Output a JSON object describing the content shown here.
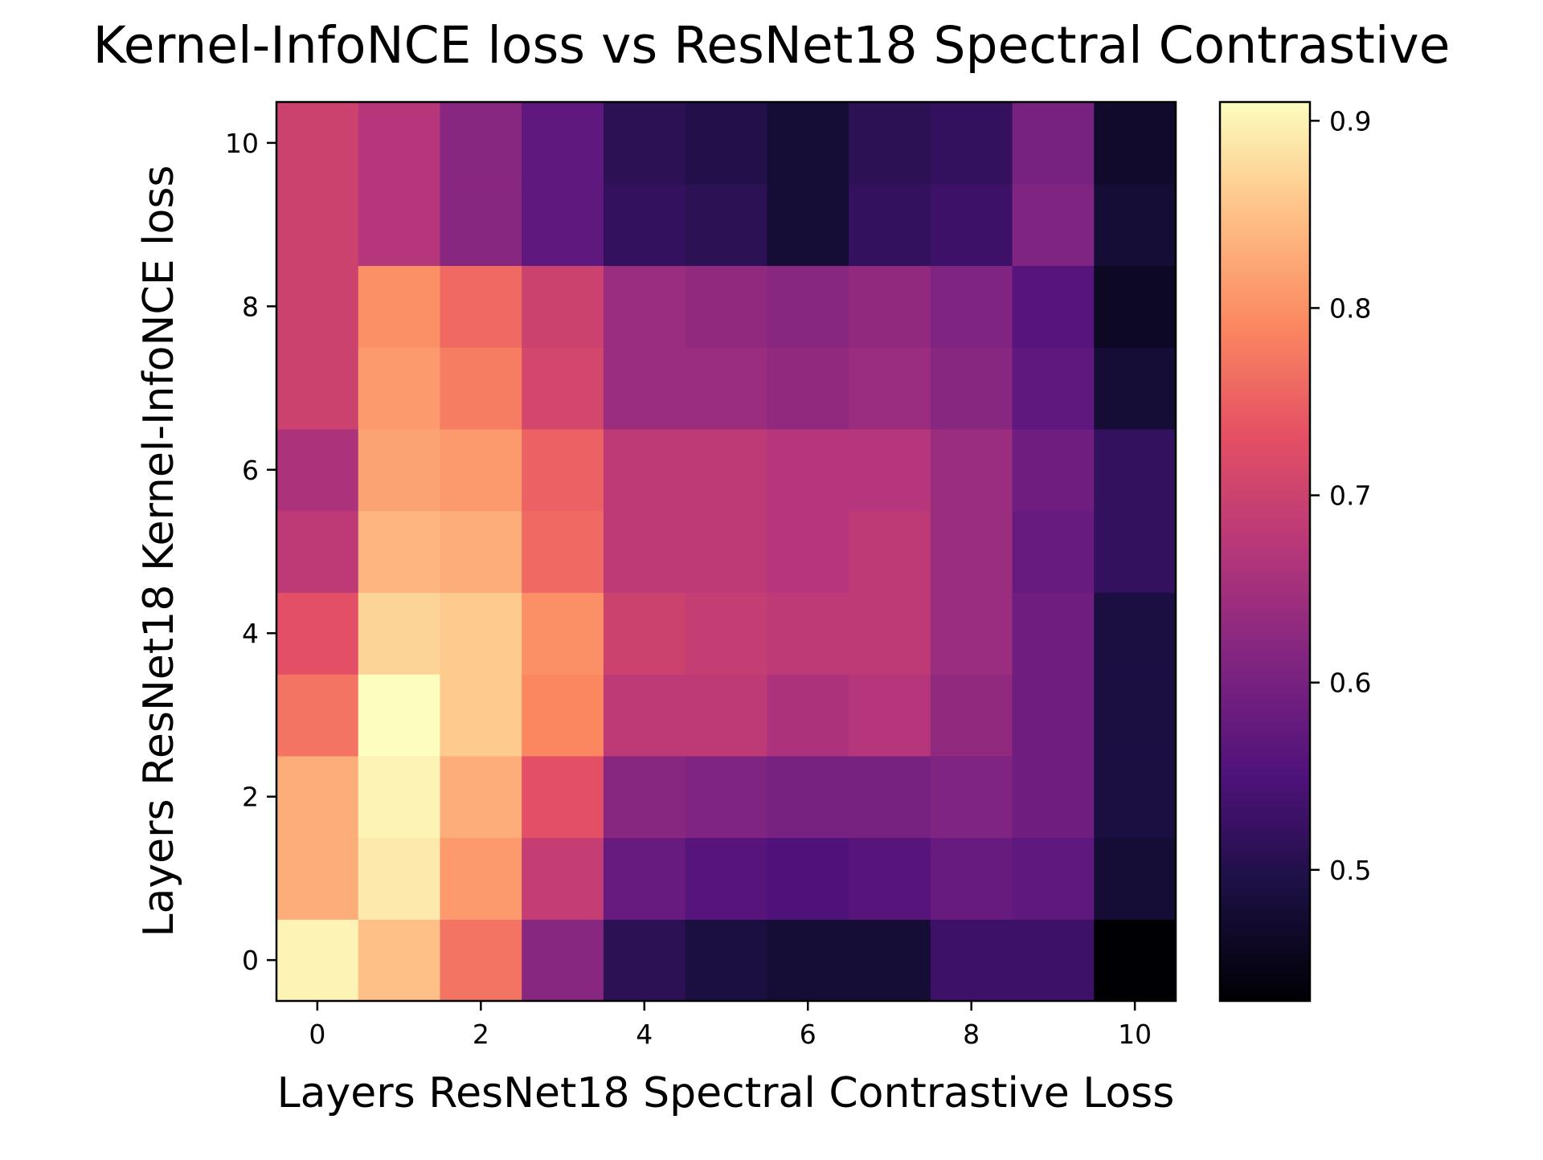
{
  "chart_data": {
    "type": "heatmap",
    "title": "Kernel-InfoNCE loss vs ResNet18 Spectral Contrastive",
    "xlabel": "Layers ResNet18 Spectral Contrastive Loss",
    "ylabel": "Layers ResNet18 Kernel-InfoNCE loss",
    "x": [
      0,
      1,
      2,
      3,
      4,
      5,
      6,
      7,
      8,
      9,
      10
    ],
    "y": [
      0,
      1,
      2,
      3,
      4,
      5,
      6,
      7,
      8,
      9,
      10
    ],
    "x_ticks": [
      0,
      2,
      4,
      6,
      8,
      10
    ],
    "y_ticks": [
      0,
      2,
      4,
      6,
      8,
      10
    ],
    "colormap": "magma",
    "colorbar": {
      "min": 0.43,
      "max": 0.91,
      "ticks": [
        0.5,
        0.6,
        0.7,
        0.8,
        0.9
      ],
      "tick_labels": [
        "0.5",
        "0.6",
        "0.7",
        "0.8",
        "0.9"
      ]
    },
    "rows": [
      {
        "y": 0,
        "values": [
          0.9,
          0.85,
          0.77,
          0.62,
          0.51,
          0.49,
          0.48,
          0.48,
          0.53,
          0.53,
          0.43
        ]
      },
      {
        "y": 1,
        "values": [
          0.83,
          0.89,
          0.81,
          0.69,
          0.58,
          0.56,
          0.55,
          0.56,
          0.58,
          0.57,
          0.48
        ]
      },
      {
        "y": 2,
        "values": [
          0.83,
          0.9,
          0.83,
          0.73,
          0.62,
          0.61,
          0.6,
          0.6,
          0.61,
          0.59,
          0.49
        ]
      },
      {
        "y": 3,
        "values": [
          0.77,
          0.91,
          0.86,
          0.79,
          0.68,
          0.68,
          0.66,
          0.67,
          0.63,
          0.59,
          0.49
        ]
      },
      {
        "y": 4,
        "values": [
          0.73,
          0.87,
          0.86,
          0.8,
          0.7,
          0.69,
          0.68,
          0.68,
          0.64,
          0.59,
          0.49
        ]
      },
      {
        "y": 5,
        "values": [
          0.68,
          0.84,
          0.83,
          0.76,
          0.68,
          0.68,
          0.67,
          0.68,
          0.64,
          0.58,
          0.52
        ]
      },
      {
        "y": 6,
        "values": [
          0.66,
          0.82,
          0.81,
          0.75,
          0.68,
          0.68,
          0.67,
          0.67,
          0.64,
          0.59,
          0.52
        ]
      },
      {
        "y": 7,
        "values": [
          0.7,
          0.81,
          0.78,
          0.71,
          0.64,
          0.64,
          0.63,
          0.64,
          0.62,
          0.57,
          0.48
        ]
      },
      {
        "y": 8,
        "values": [
          0.7,
          0.8,
          0.76,
          0.7,
          0.64,
          0.63,
          0.62,
          0.63,
          0.61,
          0.56,
          0.46
        ]
      },
      {
        "y": 9,
        "values": [
          0.7,
          0.67,
          0.62,
          0.57,
          0.52,
          0.51,
          0.48,
          0.52,
          0.53,
          0.61,
          0.48
        ]
      },
      {
        "y": 10,
        "values": [
          0.7,
          0.67,
          0.62,
          0.57,
          0.51,
          0.5,
          0.48,
          0.51,
          0.52,
          0.6,
          0.47
        ]
      }
    ]
  }
}
